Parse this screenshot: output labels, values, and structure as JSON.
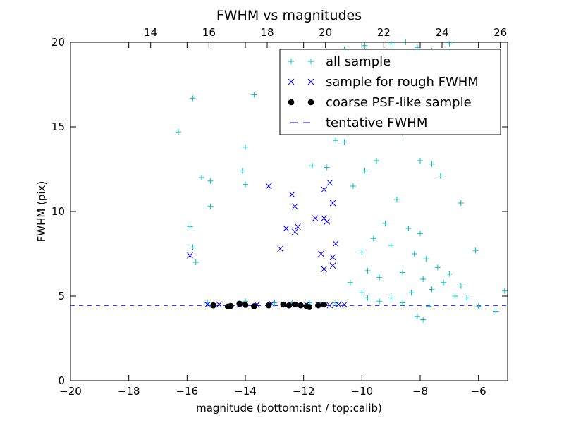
{
  "chart_data": {
    "type": "scatter",
    "title": "FWHM vs magnitudes",
    "xlabel": "magnitude (bottom:isnt / top:calib)",
    "ylabel": "FWHM (pix)",
    "xlim": [
      -20,
      -5
    ],
    "ylim": [
      0,
      20
    ],
    "top_xlim": [
      11.25,
      26.25
    ],
    "x_ticks": [
      -20,
      -18,
      -16,
      -14,
      -12,
      -10,
      -8,
      -6
    ],
    "x_tick_labels": [
      "−20",
      "−18",
      "−16",
      "−14",
      "−12",
      "−10",
      "−8",
      "−6"
    ],
    "top_x_ticks": [
      14,
      16,
      18,
      20,
      22,
      24,
      26
    ],
    "top_x_tick_labels": [
      "14",
      "16",
      "18",
      "20",
      "22",
      "24",
      "26"
    ],
    "y_ticks": [
      0,
      5,
      10,
      15,
      20
    ],
    "y_tick_labels": [
      "0",
      "5",
      "10",
      "15",
      "20"
    ],
    "grid": false,
    "legend_position": "top-right",
    "colors": {
      "all": "#00bfbf",
      "rough": "#0000ff",
      "coarse": "#000000",
      "tentative": "#0000ff"
    },
    "legend": [
      {
        "label": "all sample",
        "marker": "plus"
      },
      {
        "label": "sample for rough FWHM",
        "marker": "x"
      },
      {
        "label": "coarse PSF-like sample",
        "marker": "dot"
      },
      {
        "label": "tentative FWHM",
        "marker": "dash"
      }
    ],
    "tentative_fwhm": 4.45,
    "series": [
      {
        "marker": "plus",
        "points": [
          [
            -16.3,
            14.7
          ],
          [
            -15.8,
            16.7
          ],
          [
            -13.7,
            16.9
          ],
          [
            -14.0,
            13.8
          ],
          [
            -14.1,
            12.4
          ],
          [
            -14.0,
            11.6
          ],
          [
            -15.5,
            12.0
          ],
          [
            -15.2,
            11.8
          ],
          [
            -15.2,
            10.3
          ],
          [
            -15.9,
            9.1
          ],
          [
            -15.8,
            7.9
          ],
          [
            -15.7,
            7.0
          ],
          [
            -10.6,
            19.6
          ],
          [
            -10.4,
            19.3
          ],
          [
            -11.7,
            12.7
          ],
          [
            -11.2,
            12.6
          ],
          [
            -10.9,
            14.2
          ],
          [
            -10.6,
            14.1
          ],
          [
            -10.3,
            11.5
          ],
          [
            -9.9,
            19.8
          ],
          [
            -9.5,
            19.4
          ],
          [
            -9.0,
            19.9
          ],
          [
            -8.5,
            20.0
          ],
          [
            -8.1,
            19.7
          ],
          [
            -7.6,
            19.5
          ],
          [
            -7.0,
            19.9
          ],
          [
            -8.8,
            16.4
          ],
          [
            -9.2,
            15.1
          ],
          [
            -9.5,
            13.0
          ],
          [
            -9.9,
            12.4
          ],
          [
            -8.6,
            14.6
          ],
          [
            -8.0,
            13.0
          ],
          [
            -7.6,
            12.8
          ],
          [
            -7.3,
            12.1
          ],
          [
            -6.6,
            10.5
          ],
          [
            -6.1,
            7.7
          ],
          [
            -5.1,
            5.3
          ],
          [
            -5.4,
            4.1
          ],
          [
            -10.9,
            4.6
          ],
          [
            -11.3,
            4.6
          ],
          [
            -11.8,
            4.6
          ],
          [
            -12.4,
            4.6
          ],
          [
            -13.0,
            4.6
          ],
          [
            -14.0,
            4.7
          ],
          [
            -15.3,
            4.6
          ],
          [
            -10.0,
            5.2
          ],
          [
            -10.4,
            5.8
          ],
          [
            -10.0,
            7.6
          ],
          [
            -9.8,
            6.5
          ],
          [
            -9.6,
            8.4
          ],
          [
            -9.4,
            6.1
          ],
          [
            -9.2,
            9.3
          ],
          [
            -9.0,
            8.0
          ],
          [
            -8.8,
            10.7
          ],
          [
            -8.6,
            6.4
          ],
          [
            -8.4,
            9.0
          ],
          [
            -8.2,
            7.5
          ],
          [
            -8.0,
            8.7
          ],
          [
            -7.9,
            6.0
          ],
          [
            -7.8,
            7.2
          ],
          [
            -7.6,
            5.4
          ],
          [
            -7.4,
            6.7
          ],
          [
            -7.2,
            5.8
          ],
          [
            -7.0,
            6.3
          ],
          [
            -6.8,
            5.0
          ],
          [
            -6.6,
            5.6
          ],
          [
            -6.4,
            4.9
          ],
          [
            -6.0,
            4.4
          ],
          [
            -8.1,
            3.8
          ],
          [
            -7.9,
            3.6
          ],
          [
            -9.8,
            4.9
          ],
          [
            -9.4,
            4.7
          ],
          [
            -9.0,
            4.9
          ],
          [
            -8.6,
            4.6
          ],
          [
            -8.3,
            5.2
          ],
          [
            -7.7,
            4.4
          ]
        ]
      },
      {
        "marker": "x",
        "points": [
          [
            -15.9,
            7.4
          ],
          [
            -13.2,
            11.5
          ],
          [
            -12.4,
            11.0
          ],
          [
            -12.3,
            10.3
          ],
          [
            -12.6,
            9.0
          ],
          [
            -12.2,
            9.1
          ],
          [
            -12.3,
            8.8
          ],
          [
            -11.6,
            9.6
          ],
          [
            -11.3,
            9.6
          ],
          [
            -11.3,
            11.3
          ],
          [
            -11.1,
            11.7
          ],
          [
            -11.0,
            10.5
          ],
          [
            -11.2,
            9.4
          ],
          [
            -10.9,
            8.1
          ],
          [
            -11.4,
            7.5
          ],
          [
            -11.0,
            7.3
          ],
          [
            -11.0,
            6.8
          ],
          [
            -11.3,
            6.6
          ],
          [
            -12.8,
            7.8
          ],
          [
            -15.3,
            4.5
          ],
          [
            -14.9,
            4.5
          ],
          [
            -14.2,
            4.5
          ],
          [
            -13.6,
            4.5
          ],
          [
            -13.1,
            4.55
          ],
          [
            -12.3,
            4.5
          ],
          [
            -11.9,
            4.5
          ],
          [
            -11.5,
            4.5
          ],
          [
            -11.1,
            4.45
          ],
          [
            -10.8,
            4.5
          ],
          [
            -10.6,
            4.5
          ]
        ]
      },
      {
        "marker": "dot",
        "points": [
          [
            -15.1,
            4.45
          ],
          [
            -14.6,
            4.38
          ],
          [
            -14.5,
            4.42
          ],
          [
            -14.2,
            4.55
          ],
          [
            -14.0,
            4.48
          ],
          [
            -13.7,
            4.4
          ],
          [
            -13.2,
            4.45
          ],
          [
            -12.7,
            4.5
          ],
          [
            -12.5,
            4.45
          ],
          [
            -12.3,
            4.5
          ],
          [
            -12.1,
            4.45
          ],
          [
            -11.9,
            4.4
          ],
          [
            -11.8,
            4.35
          ],
          [
            -11.5,
            4.45
          ],
          [
            -11.3,
            4.5
          ]
        ]
      }
    ]
  }
}
